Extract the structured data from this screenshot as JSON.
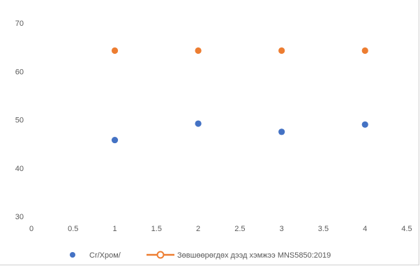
{
  "chart_data": {
    "type": "scatter",
    "xlim": [
      0,
      4.5
    ],
    "ylim": [
      30,
      70
    ],
    "x_ticks": [
      "0",
      "0.5",
      "1",
      "1.5",
      "2",
      "2.5",
      "3",
      "3.5",
      "4",
      "4.5"
    ],
    "y_ticks": [
      "30",
      "40",
      "50",
      "60",
      "70"
    ],
    "grid": false,
    "legend_position": "bottom",
    "series": [
      {
        "name": "Cr/Хром/",
        "color": "#4472c4",
        "marker": "circle",
        "line": false,
        "x": [
          1,
          2,
          3,
          4
        ],
        "y": [
          45.8,
          49.2,
          47.5,
          49.0
        ]
      },
      {
        "name": "Зөвшөөрөгдөх дээд хэмжээ MNS5850:2019",
        "color": "#ed7d31",
        "marker": "circle",
        "line": false,
        "legend_line": true,
        "x": [
          1,
          2,
          3,
          4
        ],
        "y": [
          64.3,
          64.3,
          64.3,
          64.3
        ]
      }
    ]
  }
}
